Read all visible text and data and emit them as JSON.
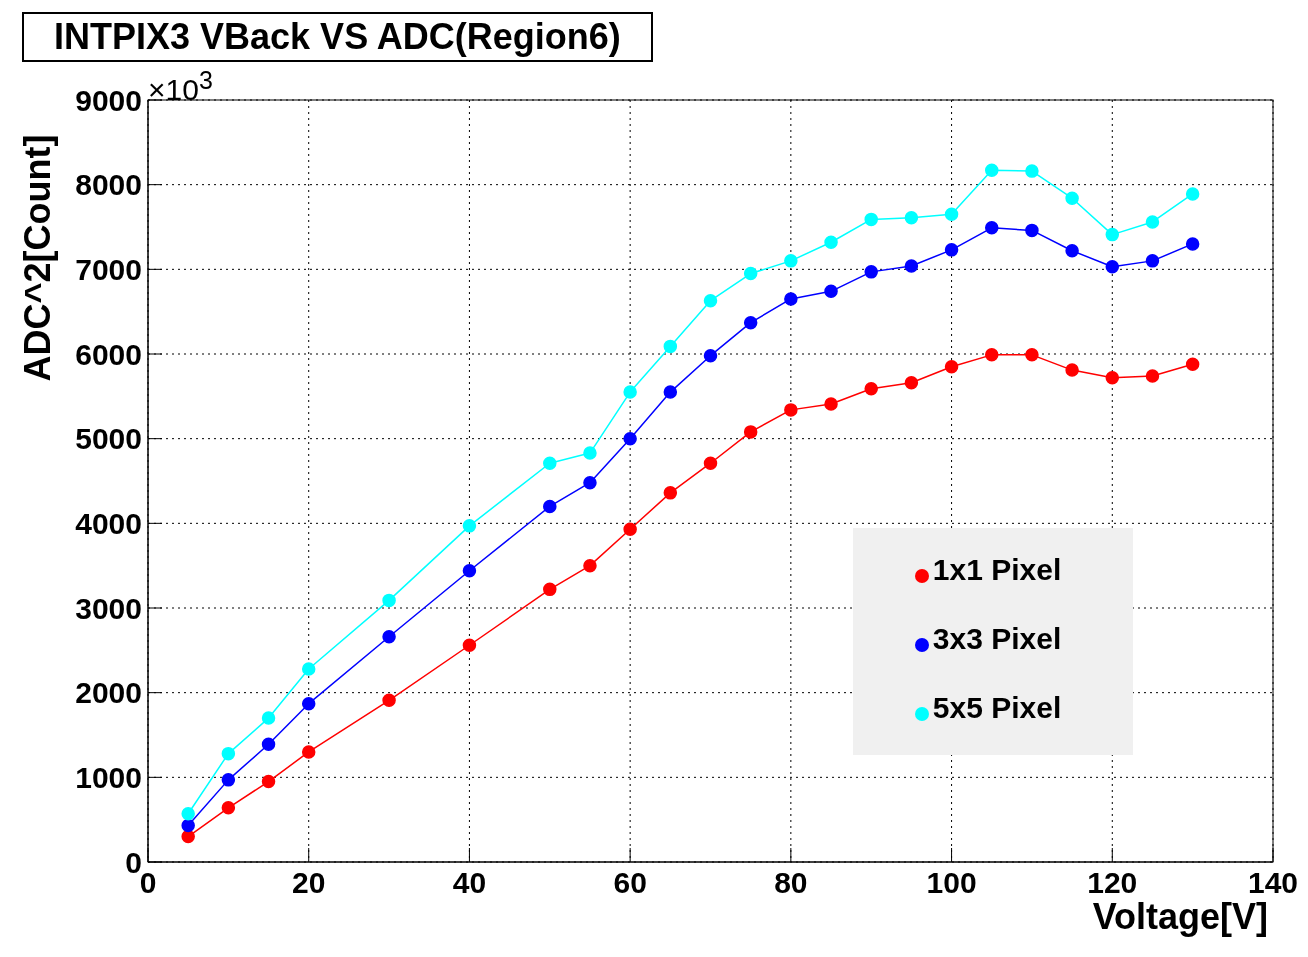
{
  "chart_data": {
    "type": "line",
    "title": "INTPIX3 VBack VS ADC(Region6)",
    "xlabel": "Voltage[V]",
    "ylabel": "ADC^2[Count]",
    "annotations": [
      "×10$^{3}$"
    ],
    "x": [
      5,
      10,
      15,
      20,
      30,
      40,
      50,
      55,
      60,
      65,
      70,
      75,
      80,
      85,
      90,
      95,
      100,
      105,
      110,
      115,
      120,
      125,
      130
    ],
    "series": [
      {
        "name": "1x1 Pixel",
        "color": "#ff0000",
        "values": [
          300,
          640,
          950,
          1300,
          1910,
          2560,
          3220,
          3500,
          3930,
          4360,
          4710,
          5080,
          5340,
          5410,
          5590,
          5660,
          5850,
          5990,
          5990,
          5810,
          5720,
          5740,
          5880
        ]
      },
      {
        "name": "3x3 Pixel",
        "color": "#0000ff",
        "values": [
          430,
          970,
          1390,
          1870,
          2660,
          3440,
          4200,
          4480,
          5000,
          5550,
          5980,
          6370,
          6650,
          6740,
          6970,
          7040,
          7230,
          7490,
          7460,
          7220,
          7030,
          7100,
          7300
        ]
      },
      {
        "name": "5x5 Pixel",
        "color": "#00ffff",
        "values": [
          570,
          1280,
          1700,
          2280,
          3090,
          3970,
          4710,
          4830,
          5550,
          6090,
          6630,
          6950,
          7100,
          7320,
          7590,
          7610,
          7650,
          8170,
          8160,
          7840,
          7410,
          7560,
          7890
        ]
      }
    ],
    "xlim": [
      0,
      140
    ],
    "xticks": [
      0,
      20,
      40,
      60,
      80,
      100,
      120,
      140
    ],
    "ylim": [
      0,
      9000
    ],
    "yticks": [
      0,
      1000,
      2000,
      3000,
      4000,
      5000,
      6000,
      7000,
      8000,
      9000
    ],
    "grid": true,
    "legend": "bottom right",
    "marker": "circle",
    "line_style": "solid"
  }
}
